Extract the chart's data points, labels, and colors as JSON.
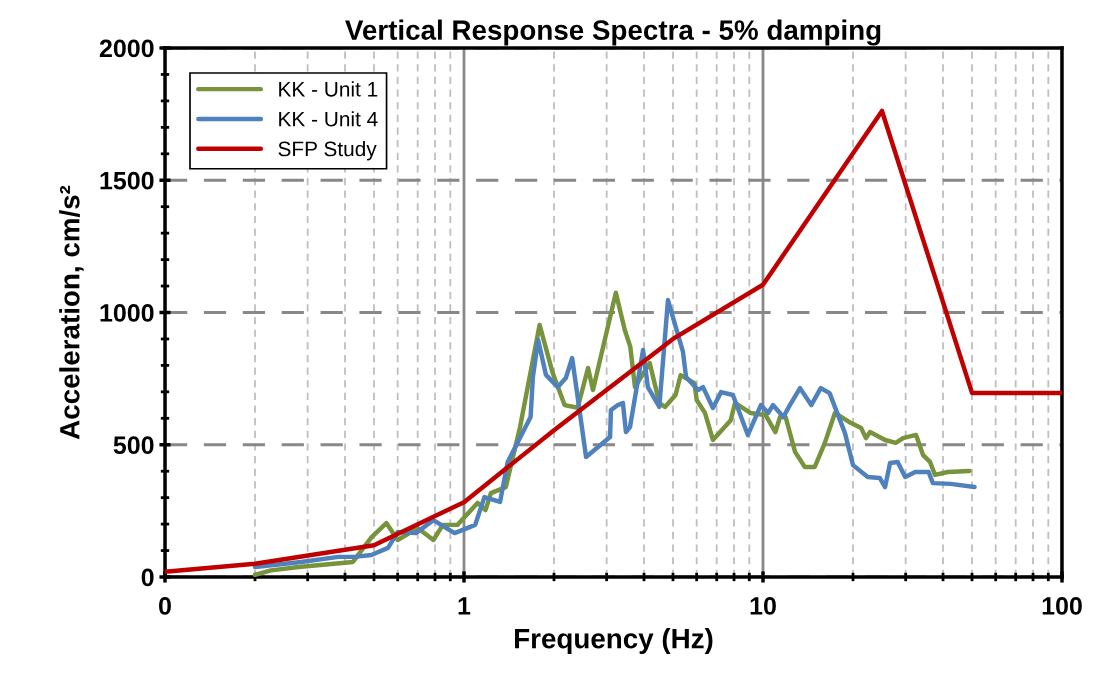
{
  "chart_data": {
    "type": "line",
    "title": "Vertical Response Spectra - 5% damping",
    "xlabel": "Frequency (Hz)",
    "ylabel": "Acceleration, cm/s²",
    "log": "x",
    "xlim": [
      0.1,
      100
    ],
    "xticks": [
      {
        "value": 0.1,
        "label": "0"
      },
      1,
      10,
      100
    ],
    "ylim": [
      0,
      2000
    ],
    "yticks": [
      0,
      500,
      1000,
      1500,
      2000
    ],
    "grid": true,
    "legend": "top left",
    "marker": "none",
    "line_style": "solid",
    "series": [
      {
        "name": "KK - Unit 1",
        "color": "#77933c",
        "x": [
          0.2,
          0.226,
          0.28,
          0.425,
          0.49,
          0.55,
          0.6,
          0.7,
          0.79,
          0.85,
          0.95,
          1.11,
          1.18,
          1.23,
          1.38,
          1.54,
          1.79,
          1.98,
          2.17,
          2.4,
          2.6,
          2.7,
          3.22,
          3.45,
          3.6,
          3.73,
          4.18,
          4.5,
          4.7,
          5.1,
          5.3,
          5.9,
          6.0,
          6.4,
          6.8,
          7.8,
          8.06,
          9.1,
          10.2,
          11.0,
          11.4,
          11.9,
          12.8,
          13.8,
          14.9,
          16.1,
          17.4,
          19.7,
          21.3,
          22.1,
          22.8,
          25.6,
          27.8,
          29.4,
          32.5,
          34.3,
          36.2,
          37.6,
          41.5,
          49
        ],
        "values": [
          8,
          25,
          38,
          57,
          150,
          204,
          140,
          185,
          140,
          197,
          197,
          280,
          253,
          317,
          340,
          567,
          953,
          771,
          650,
          640,
          790,
          707,
          1075,
          934,
          870,
          718,
          809,
          658,
          643,
          688,
          763,
          733,
          669,
          620,
          518,
          593,
          658,
          620,
          612,
          548,
          605,
          605,
          473,
          416,
          416,
          507,
          620,
          582,
          563,
          525,
          548,
          518,
          507,
          525,
          537,
          461,
          435,
          386,
          397,
          401
        ]
      },
      {
        "name": "KK - Unit 4",
        "color": "#4f81bd",
        "x": [
          0.2,
          0.285,
          0.38,
          0.43,
          0.49,
          0.557,
          0.6,
          0.69,
          0.79,
          0.93,
          1.09,
          1.17,
          1.32,
          1.4,
          1.67,
          1.7,
          1.77,
          1.88,
          2.06,
          2.19,
          2.3,
          2.56,
          3.08,
          3.1,
          3.27,
          3.4,
          3.48,
          3.59,
          3.97,
          4.12,
          4.5,
          4.81,
          5.4,
          5.53,
          6.06,
          6.3,
          6.8,
          7.24,
          7.93,
          8.9,
          9.84,
          10.4,
          10.8,
          11.7,
          12.3,
          13.3,
          14.5,
          15.6,
          16.7,
          18.8,
          20,
          22.4,
          24.6,
          25.6,
          26.6,
          28.2,
          29.9,
          32.3,
          35.8,
          37,
          42.4,
          51
        ],
        "values": [
          38,
          57,
          76,
          76,
          83,
          110,
          170,
          166,
          215,
          166,
          197,
          302,
          284,
          435,
          605,
          756,
          896,
          764,
          718,
          752,
          828,
          454,
          529,
          631,
          650,
          658,
          548,
          567,
          858,
          718,
          643,
          1047,
          851,
          756,
          707,
          718,
          639,
          699,
          688,
          537,
          650,
          620,
          650,
          605,
          650,
          714,
          650,
          714,
          695,
          544,
          423,
          378,
          374,
          340,
          431,
          435,
          378,
          397,
          397,
          355,
          352,
          340
        ]
      },
      {
        "name": "SFP Study",
        "color": "#c00000",
        "x": [
          0.1,
          0.2,
          0.5,
          1,
          2,
          5,
          10,
          25,
          50,
          100
        ],
        "values": [
          20,
          50,
          120,
          283,
          555,
          900,
          1105,
          1762,
          696,
          696
        ]
      }
    ]
  }
}
